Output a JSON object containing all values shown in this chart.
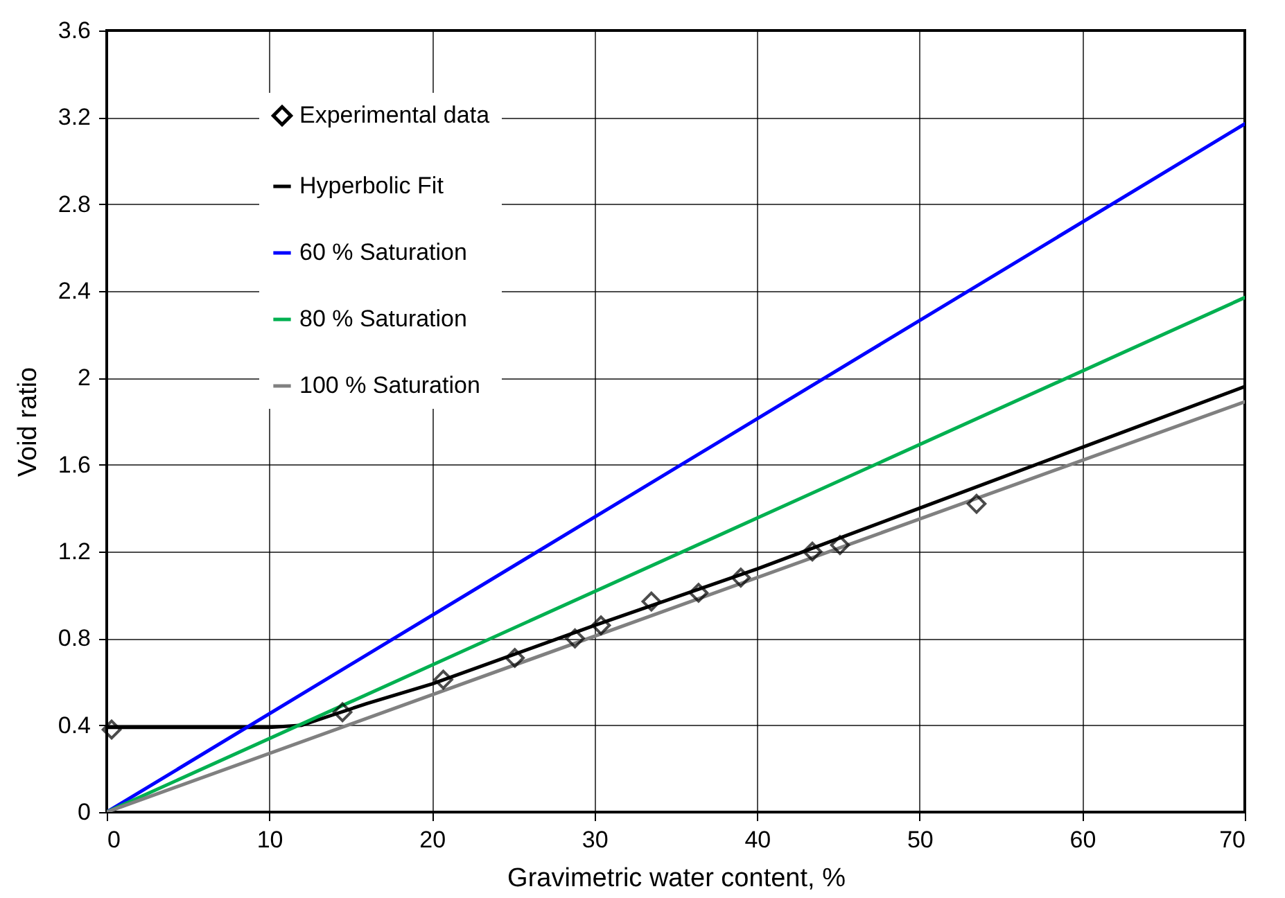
{
  "chart_data": {
    "type": "line",
    "xlabel": "Gravimetric water content, %",
    "ylabel": "Void ratio",
    "xlim": [
      0,
      70
    ],
    "xticks": [
      0,
      10,
      20,
      30,
      40,
      50,
      60,
      70
    ],
    "ylim": [
      0,
      3.6
    ],
    "yticks": [
      0,
      0.4,
      0.8,
      1.2,
      1.6,
      2,
      2.4,
      2.8,
      3.2,
      3.6
    ],
    "grid": true,
    "legend": "top left",
    "line_style": "solid",
    "series": [
      {
        "name": "Experimental data",
        "type": "scatter",
        "marker": "diamond",
        "color": "#000000",
        "x": [
          0.3,
          14.5,
          20.7,
          25.1,
          28.8,
          30.4,
          33.5,
          36.4,
          39,
          43.4,
          45.1,
          53.5
        ],
        "values": [
          0.38,
          0.46,
          0.61,
          0.71,
          0.8,
          0.86,
          0.97,
          1.01,
          1.08,
          1.2,
          1.23,
          1.42
        ]
      },
      {
        "name": "Hyperbolic Fit",
        "type": "line",
        "color": "#000000",
        "x": [
          0,
          10,
          12,
          14,
          16,
          20,
          30,
          40,
          50,
          60,
          70
        ],
        "values": [
          0.39,
          0.39,
          0.4,
          0.45,
          0.5,
          0.59,
          0.86,
          1.12,
          1.4,
          1.68,
          1.96
        ]
      },
      {
        "name": "60 % Saturation",
        "type": "line",
        "color": "#0000ff",
        "x": [
          0,
          70
        ],
        "values": [
          0,
          3.17
        ]
      },
      {
        "name": "80 % Saturation",
        "type": "line",
        "color": "#00b050",
        "x": [
          0,
          70
        ],
        "values": [
          0,
          2.37
        ]
      },
      {
        "name": "100 % Saturation",
        "type": "line",
        "color": "#808080",
        "x": [
          0,
          70
        ],
        "values": [
          0,
          1.89
        ]
      }
    ]
  }
}
